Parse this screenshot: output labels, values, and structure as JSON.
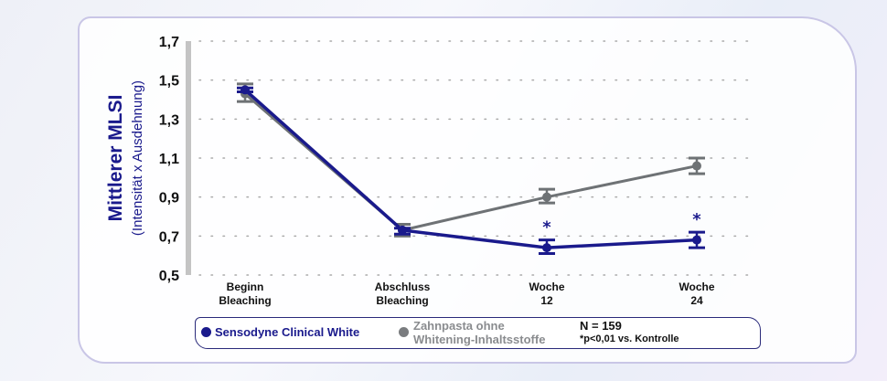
{
  "chart_data": {
    "type": "line",
    "ylabel": "Mittlerer MLSI",
    "ylabel_sub": "(Intensität x Ausdehnung)",
    "ylim": [
      0.5,
      1.7
    ],
    "yticks": [
      "0,5",
      "0,7",
      "0,9",
      "1,1",
      "1,3",
      "1,5",
      "1,7"
    ],
    "ytick_values": [
      0.5,
      0.7,
      0.9,
      1.1,
      1.3,
      1.5,
      1.7
    ],
    "grid": "dotted horizontal",
    "categories": [
      [
        "Beginn",
        "Bleaching"
      ],
      [
        "Abschluss",
        "Bleaching"
      ],
      [
        "Woche",
        "12"
      ],
      [
        "Woche",
        "24"
      ]
    ],
    "series": [
      {
        "name": "Zahnpasta ohne Whitening-Inhaltsstoffe",
        "color": "#6e7275",
        "values": [
          1.43,
          0.73,
          0.9,
          1.06
        ],
        "err_low": [
          1.39,
          0.7,
          0.87,
          1.02
        ],
        "err_high": [
          1.48,
          0.76,
          0.94,
          1.1
        ]
      },
      {
        "name": "Sensodyne Clinical White",
        "color": "#1a1a8c",
        "values": [
          1.45,
          0.73,
          0.64,
          0.68
        ],
        "err_low": [
          1.44,
          0.71,
          0.61,
          0.64
        ],
        "err_high": [
          1.46,
          0.74,
          0.68,
          0.72
        ],
        "markers": [
          "",
          "",
          "*",
          "*"
        ]
      }
    ],
    "legend_position": "bottom"
  },
  "legend": {
    "series1": "Sensodyne Clinical White",
    "series2_line1": "Zahnpasta ohne",
    "series2_line2": "Whitening-Inhaltsstoffe",
    "n": "N = 159",
    "note": "*p<0,01 vs. Kontrolle"
  }
}
